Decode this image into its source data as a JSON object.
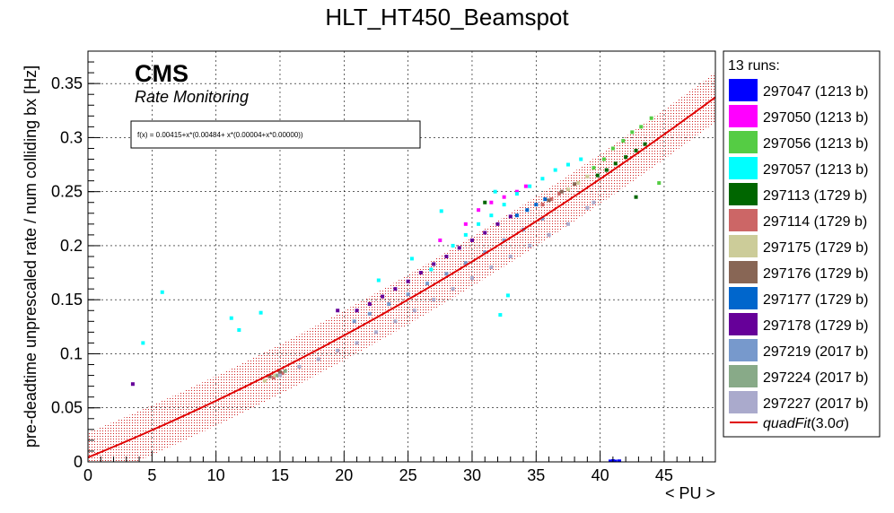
{
  "chart_data": {
    "type": "scatter",
    "title": "HLT_HT450_Beamspot",
    "xlabel": "< PU >",
    "ylabel": "pre-deadtime unprescaled rate / num colliding bx [Hz]",
    "xlim": [
      0,
      49
    ],
    "ylim": [
      0,
      0.38
    ],
    "x_ticks": [
      0,
      5,
      10,
      15,
      20,
      25,
      30,
      35,
      40,
      45
    ],
    "x_tick_labels": [
      "0",
      "5",
      "10",
      "15",
      "20",
      "25",
      "30",
      "35",
      "40",
      "45"
    ],
    "y_ticks": [
      0,
      0.05,
      0.1,
      0.15,
      0.2,
      0.25,
      0.3,
      0.35
    ],
    "y_tick_labels": [
      "0",
      "0.05",
      "0.1",
      "0.15",
      "0.2",
      "0.25",
      "0.3",
      "0.35"
    ],
    "grid": true,
    "legend_position": "right",
    "annotations": {
      "experiment": "CMS",
      "subtitle": "Rate Monitoring",
      "formula": "f(x) = 0.00415+x*(0.00484+ x*(0.00004+x*0.00000))"
    },
    "legend_header": "13 runs:",
    "fit": {
      "name": "quadFit(3.0σ)",
      "label_main": "quadFit",
      "label_tail": "(3.0",
      "label_sigma": "σ",
      "label_close": ")",
      "color": "#e00000",
      "a": 0.00415,
      "b": 0.00484,
      "c": 4e-05,
      "band": 0.023,
      "x_range": [
        0,
        49
      ]
    },
    "series": [
      {
        "name": "297047 (1213 b)",
        "color": "#0000ff",
        "points": [
          [
            40.8,
            0.0005
          ],
          [
            41.0,
            0.0008
          ],
          [
            41.2,
            0.0004
          ],
          [
            41.5,
            0.0006
          ]
        ]
      },
      {
        "name": "297050 (1213 b)",
        "color": "#ff00ff",
        "points": [
          [
            27.5,
            0.205
          ],
          [
            29.5,
            0.22
          ],
          [
            30.5,
            0.233
          ],
          [
            31.5,
            0.24
          ],
          [
            32.5,
            0.245
          ],
          [
            33.5,
            0.25
          ],
          [
            34.2,
            0.255
          ]
        ]
      },
      {
        "name": "297056 (1213 b)",
        "color": "#55cc44",
        "points": [
          [
            39.5,
            0.272
          ],
          [
            40.3,
            0.28
          ],
          [
            41,
            0.29
          ],
          [
            41.8,
            0.297
          ],
          [
            42.5,
            0.305
          ],
          [
            43.2,
            0.31
          ],
          [
            44,
            0.318
          ],
          [
            44.6,
            0.258
          ]
        ]
      },
      {
        "name": "297057 (1213 b)",
        "color": "#00ffff",
        "points": [
          [
            4.3,
            0.11
          ],
          [
            5.8,
            0.157
          ],
          [
            11.2,
            0.133
          ],
          [
            11.8,
            0.122
          ],
          [
            13.5,
            0.138
          ],
          [
            22.7,
            0.168
          ],
          [
            25.3,
            0.188
          ],
          [
            26.8,
            0.178
          ],
          [
            27.6,
            0.232
          ],
          [
            28.5,
            0.2
          ],
          [
            29.5,
            0.21
          ],
          [
            30.5,
            0.22
          ],
          [
            31.5,
            0.228
          ],
          [
            32.5,
            0.238
          ],
          [
            33.5,
            0.248
          ],
          [
            34.5,
            0.255
          ],
          [
            35.5,
            0.262
          ],
          [
            36.5,
            0.27
          ],
          [
            37.5,
            0.275
          ],
          [
            38.5,
            0.28
          ],
          [
            32.2,
            0.136
          ],
          [
            32.8,
            0.154
          ],
          [
            31.8,
            0.25
          ]
        ]
      },
      {
        "name": "297113 (1729 b)",
        "color": "#006600",
        "points": [
          [
            39.8,
            0.265
          ],
          [
            40.5,
            0.27
          ],
          [
            41.2,
            0.276
          ],
          [
            42,
            0.282
          ],
          [
            42.8,
            0.288
          ],
          [
            43.5,
            0.294
          ],
          [
            31.0,
            0.24
          ],
          [
            42.8,
            0.245
          ]
        ]
      },
      {
        "name": "297114 (1729 b)",
        "color": "#cc6666",
        "points": [
          [
            14.5,
            0.078
          ],
          [
            15.2,
            0.082
          ],
          [
            35.5,
            0.238
          ],
          [
            36.2,
            0.243
          ],
          [
            36.8,
            0.248
          ]
        ]
      },
      {
        "name": "297175 (1729 b)",
        "color": "#cccc99",
        "points": [
          [
            13.8,
            0.075
          ],
          [
            14.6,
            0.08
          ],
          [
            37.5,
            0.252
          ],
          [
            38.3,
            0.258
          ],
          [
            39,
            0.264
          ]
        ]
      },
      {
        "name": "297176 (1729 b)",
        "color": "#886655",
        "points": [
          [
            14.2,
            0.079
          ],
          [
            15.0,
            0.083
          ],
          [
            36,
            0.242
          ],
          [
            37,
            0.25
          ],
          [
            38,
            0.257
          ]
        ]
      },
      {
        "name": "297177 (1729 b)",
        "color": "#0066cc",
        "points": [
          [
            33.5,
            0.228
          ],
          [
            34.3,
            0.233
          ],
          [
            35.0,
            0.238
          ],
          [
            35.7,
            0.243
          ]
        ]
      },
      {
        "name": "297178 (1729 b)",
        "color": "#660099",
        "points": [
          [
            3.5,
            0.072
          ],
          [
            19.5,
            0.14
          ],
          [
            21,
            0.14
          ],
          [
            22,
            0.146
          ],
          [
            23,
            0.153
          ],
          [
            24,
            0.16
          ],
          [
            25,
            0.167
          ],
          [
            26,
            0.175
          ],
          [
            27,
            0.183
          ],
          [
            28,
            0.19
          ],
          [
            29,
            0.198
          ],
          [
            30,
            0.205
          ],
          [
            31,
            0.212
          ],
          [
            32,
            0.22
          ],
          [
            33,
            0.227
          ]
        ]
      },
      {
        "name": "297219 (2017 b)",
        "color": "#7799cc",
        "points": [
          [
            20.8,
            0.13
          ],
          [
            22,
            0.137
          ],
          [
            23.5,
            0.146
          ],
          [
            25,
            0.155
          ],
          [
            26.5,
            0.165
          ],
          [
            28,
            0.174
          ],
          [
            29.5,
            0.184
          ],
          [
            31,
            0.194
          ],
          [
            32.5,
            0.205
          ],
          [
            34,
            0.215
          ],
          [
            35.5,
            0.225
          ]
        ]
      },
      {
        "name": "297224 (2017 b)",
        "color": "#88aa88",
        "points": [
          [
            14.8,
            0.08
          ],
          [
            15.4,
            0.084
          ]
        ]
      },
      {
        "name": "297227 (2017 b)",
        "color": "#aaaacc",
        "points": [
          [
            15,
            0.08
          ],
          [
            16.5,
            0.088
          ],
          [
            18,
            0.095
          ],
          [
            19.5,
            0.103
          ],
          [
            21,
            0.11
          ],
          [
            22.5,
            0.12
          ],
          [
            24,
            0.13
          ],
          [
            25.5,
            0.14
          ],
          [
            27,
            0.15
          ],
          [
            28.5,
            0.16
          ],
          [
            30,
            0.17
          ],
          [
            31.5,
            0.18
          ],
          [
            33,
            0.19
          ],
          [
            34.5,
            0.2
          ],
          [
            36,
            0.21
          ],
          [
            37.5,
            0.22
          ],
          [
            39,
            0.235
          ],
          [
            39.5,
            0.24
          ]
        ]
      }
    ]
  }
}
